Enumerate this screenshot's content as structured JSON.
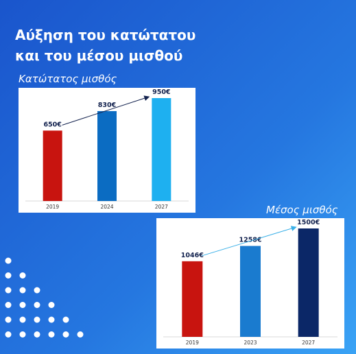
{
  "title": "Αύξηση του κατώτατου και του μέσου μισθού",
  "chart_data": [
    {
      "type": "bar",
      "title": "Κατώτατος μισθός",
      "categories": [
        "2019",
        "2024",
        "2027"
      ],
      "values": [
        650,
        830,
        950
      ],
      "value_labels": [
        "650€",
        "830€",
        "950€"
      ],
      "colors": [
        "#c8140f",
        "#0b6cc2",
        "#1eb0f0"
      ]
    },
    {
      "type": "bar",
      "title": "Μέσος μισθός",
      "categories": [
        "2019",
        "2023",
        "2027"
      ],
      "values": [
        1046,
        1258,
        1500
      ],
      "value_labels": [
        "1046€",
        "1258€",
        "1500€"
      ],
      "colors": [
        "#c8140f",
        "#1a7bcf",
        "#0b2767"
      ]
    }
  ]
}
